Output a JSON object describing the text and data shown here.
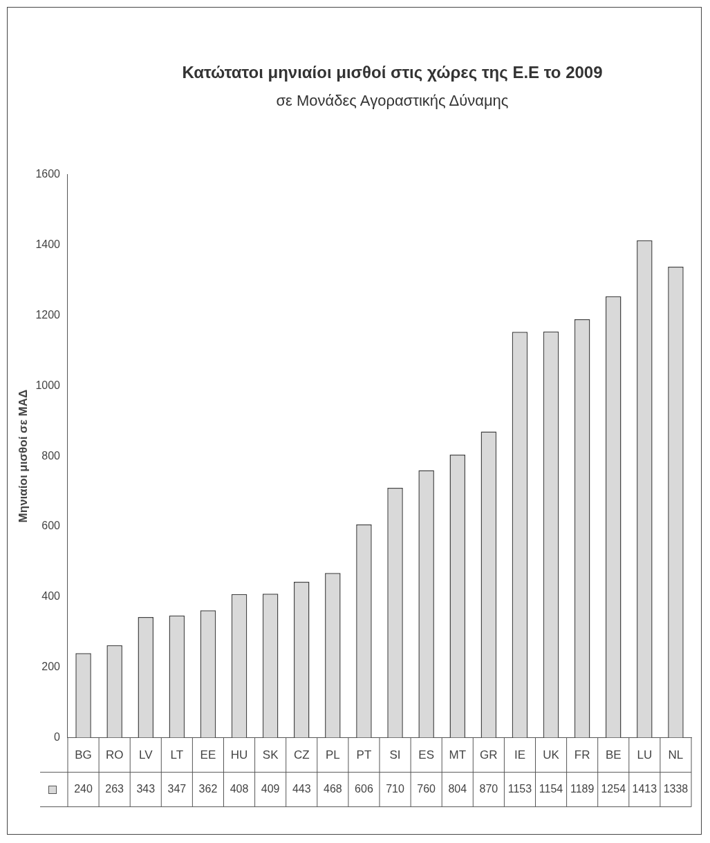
{
  "chart_data": {
    "type": "bar",
    "title": "Κατώτατοι μηνιαίοι μισθοί στις χώρες της Ε.Ε το 2009",
    "subtitle": "σε Μονάδες Αγοραστικής Δύναμης",
    "ylabel": "Μηνιαίοι μισθοί σε ΜΑΔ",
    "categories": [
      "BG",
      "RO",
      "LV",
      "LT",
      "EE",
      "HU",
      "SK",
      "CZ",
      "PL",
      "PT",
      "SI",
      "ES",
      "MT",
      "GR",
      "IE",
      "UK",
      "FR",
      "BE",
      "LU",
      "NL"
    ],
    "values": [
      240,
      263,
      343,
      347,
      362,
      408,
      409,
      443,
      468,
      606,
      710,
      760,
      804,
      870,
      1153,
      1154,
      1189,
      1254,
      1413,
      1338
    ],
    "color": "#d9d9d9",
    "ylim": [
      0,
      1600
    ],
    "yticks": [
      0,
      200,
      400,
      600,
      800,
      1000,
      1200,
      1400,
      1600
    ],
    "grid": false,
    "legend": false,
    "data_labels": true
  }
}
